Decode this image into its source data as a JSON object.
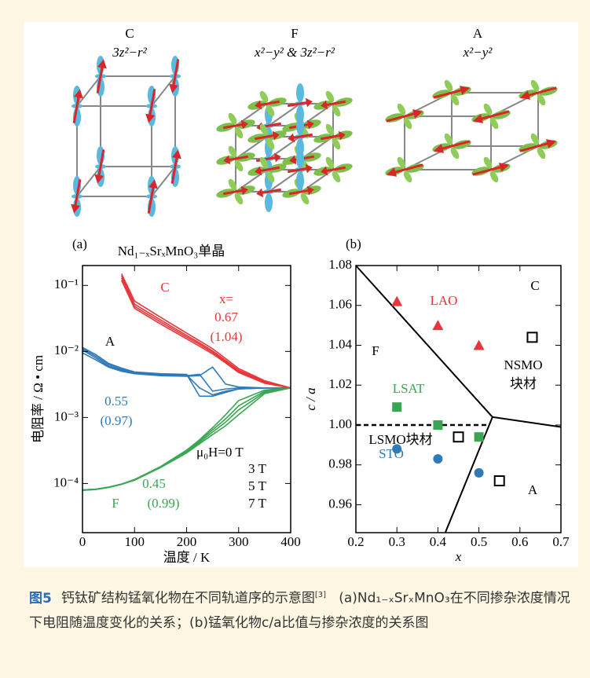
{
  "orbital_panels": [
    {
      "name": "C",
      "orbital": "3z²−r²"
    },
    {
      "name": "F",
      "orbital": "x²−y² & 3z²−r²"
    },
    {
      "name": "A",
      "orbital": "x²−y²"
    }
  ],
  "chart_data": [
    {
      "type": "line",
      "panel": "(a)",
      "title": "Nd₁₋ₓSrₓMnO₃单晶",
      "x_label": "温度 / K",
      "y_label": "电阻率 / Ω • cm",
      "log_y": true,
      "xlim": [
        0,
        400
      ],
      "ylim": [
        1.8e-05,
        0.2
      ],
      "xticks": [
        0,
        100,
        200,
        300,
        400
      ],
      "yticks": [
        {
          "value": 0.0001,
          "label": "10⁻⁴"
        },
        {
          "value": 0.001,
          "label": "10⁻³"
        },
        {
          "value": 0.01,
          "label": "10⁻²"
        },
        {
          "value": 0.1,
          "label": "10⁻¹"
        }
      ],
      "x": [
        0,
        25,
        50,
        75,
        100,
        150,
        200,
        225,
        250,
        275,
        300,
        350,
        400
      ],
      "series": [
        {
          "color": "#e8363a",
          "values": [
            null,
            null,
            null,
            0.15,
            0.058,
            0.033,
            0.019,
            0.0145,
            0.011,
            0.0078,
            0.0055,
            0.0036,
            0.0028
          ]
        },
        {
          "color": "#e8363a",
          "values": [
            null,
            null,
            null,
            0.14,
            0.052,
            0.03,
            0.0175,
            0.0135,
            0.0102,
            0.0073,
            0.0052,
            0.0035,
            0.0028
          ]
        },
        {
          "color": "#e8363a",
          "values": [
            null,
            null,
            null,
            0.13,
            0.048,
            0.028,
            0.0165,
            0.0128,
            0.0097,
            0.007,
            0.005,
            0.0034,
            0.0028
          ]
        },
        {
          "color": "#e8363a",
          "values": [
            null,
            null,
            null,
            0.12,
            0.045,
            0.026,
            0.0155,
            0.012,
            0.0092,
            0.0067,
            0.0048,
            0.0033,
            0.0028
          ]
        },
        {
          "color": "#2f7ab8",
          "values": [
            0.0095,
            0.0075,
            0.0058,
            0.005,
            0.0046,
            0.0043,
            0.0042,
            0.0043,
            0.0058,
            0.0032,
            0.0029,
            0.0028,
            0.0028
          ]
        },
        {
          "color": "#2f7ab8",
          "values": [
            0.0105,
            0.008,
            0.006,
            0.0052,
            0.0047,
            0.0044,
            0.0043,
            0.0045,
            0.0025,
            0.0027,
            0.0028,
            0.0028,
            0.0028
          ]
        },
        {
          "color": "#2f7ab8",
          "values": [
            0.011,
            0.0085,
            0.0063,
            0.0054,
            0.0048,
            0.0045,
            0.0044,
            0.0028,
            0.0022,
            0.0025,
            0.0027,
            0.0028,
            0.0028
          ]
        },
        {
          "color": "#2f7ab8",
          "values": [
            0.0115,
            0.009,
            0.0066,
            0.0056,
            0.0049,
            0.0046,
            0.0045,
            0.0021,
            0.0021,
            0.0024,
            0.0027,
            0.0028,
            0.0028
          ]
        },
        {
          "color": "#3aa652",
          "values": [
            8e-05,
            8.2e-05,
            8.8e-05,
            9.8e-05,
            0.000115,
            0.00018,
            0.00032,
            0.00046,
            0.0007,
            0.0011,
            0.0018,
            0.0026,
            0.0028
          ]
        },
        {
          "color": "#3aa652",
          "values": [
            8e-05,
            8.2e-05,
            8.8e-05,
            9.8e-05,
            0.000114,
            0.000178,
            0.00031,
            0.00044,
            0.00065,
            0.00095,
            0.0015,
            0.0025,
            0.0028
          ]
        },
        {
          "color": "#3aa652",
          "values": [
            7.9e-05,
            8.1e-05,
            8.7e-05,
            9.7e-05,
            0.000113,
            0.000176,
            0.0003,
            0.00042,
            0.0006,
            0.00085,
            0.0013,
            0.0024,
            0.0028
          ]
        },
        {
          "color": "#3aa652",
          "values": [
            7.9e-05,
            8.1e-05,
            8.7e-05,
            9.7e-05,
            0.000112,
            0.000174,
            0.00029,
            0.0004,
            0.00055,
            0.00075,
            0.0011,
            0.0023,
            0.0028
          ]
        }
      ],
      "annotations": [
        {
          "text": "C",
          "color": "#e8363a"
        },
        {
          "text": "x=",
          "color": "#e8363a"
        },
        {
          "text": "0.67",
          "color": "#e8363a"
        },
        {
          "text": "(1.04)",
          "color": "#e8363a"
        },
        {
          "text": "A",
          "color": "#000000"
        },
        {
          "text": "0.55",
          "color": "#2f7ab8"
        },
        {
          "text": "(0.97)",
          "color": "#2f7ab8"
        },
        {
          "text": "0.45",
          "color": "#3aa652"
        },
        {
          "text": "F",
          "color": "#3aa652"
        },
        {
          "text": "(0.99)",
          "color": "#3aa652"
        },
        {
          "text": "μ₀H=0 T",
          "color": "#000000"
        },
        {
          "text": "3 T",
          "color": "#000000"
        },
        {
          "text": "5 T",
          "color": "#000000"
        },
        {
          "text": "7 T",
          "color": "#000000"
        }
      ]
    },
    {
      "type": "scatter",
      "panel": "(b)",
      "x_label": "x",
      "y_label": "c / a",
      "xlim": [
        0.2,
        0.7
      ],
      "ylim": [
        0.946,
        1.08
      ],
      "xticks": [
        0.2,
        0.3,
        0.4,
        0.5,
        0.6,
        0.7
      ],
      "yticks": [
        0.96,
        0.98,
        {
          "value": 1,
          "label": "1.00"
        },
        1.02,
        1.04,
        1.06,
        1.08
      ],
      "series": [
        {
          "name": "LAO",
          "color": "#e8363a",
          "marker": "triangle",
          "x": [
            0.3,
            0.4,
            0.5
          ],
          "values": [
            1.062,
            1.05,
            1.04
          ]
        },
        {
          "name": "LSAT",
          "color": "#3aa652",
          "marker": "square",
          "x": [
            0.3,
            0.4,
            0.5
          ],
          "values": [
            1.009,
            1.0,
            0.994
          ]
        },
        {
          "name": "STO",
          "color": "#2f7ab8",
          "marker": "circle",
          "x": [
            0.3,
            0.4,
            0.5
          ],
          "values": [
            0.988,
            0.983,
            0.976
          ]
        },
        {
          "color": "#000000",
          "marker": "open-square",
          "x": [
            0.45,
            0.55,
            0.63
          ],
          "values": [
            0.994,
            0.972,
            1.044
          ]
        }
      ],
      "boundaries": [
        {
          "style": "solid",
          "x": [
            0.2,
            0.533,
            0.7
          ],
          "y": [
            1.08,
            1.004,
            0.999
          ]
        },
        {
          "style": "solid",
          "x": [
            0.533,
            0.418
          ],
          "y": [
            1.004,
            0.946
          ]
        },
        {
          "style": "dashed",
          "x": [
            0.2,
            0.52
          ],
          "y": [
            1.0,
            1.0
          ]
        }
      ],
      "annotations": [
        {
          "text": "C",
          "color": "#000000"
        },
        {
          "text": "F",
          "color": "#000000"
        },
        {
          "text": "A",
          "color": "#000000"
        },
        {
          "text": "LSMO块材",
          "color": "#000000"
        },
        {
          "text": "NSMO",
          "color": "#000000"
        },
        {
          "text": "块材",
          "color": "#000000"
        }
      ]
    }
  ],
  "caption": {
    "label": "图5",
    "text": "钙钛矿结构锰氧化物在不同轨道序的示意图",
    "ref": "[3]",
    "rest": "(a)Nd₁₋ₓSrₓMnO₃在不同掺杂浓度情况下电阻随温度变化的关系；(b)锰氧化物c/a比值与掺杂浓度的关系图"
  }
}
